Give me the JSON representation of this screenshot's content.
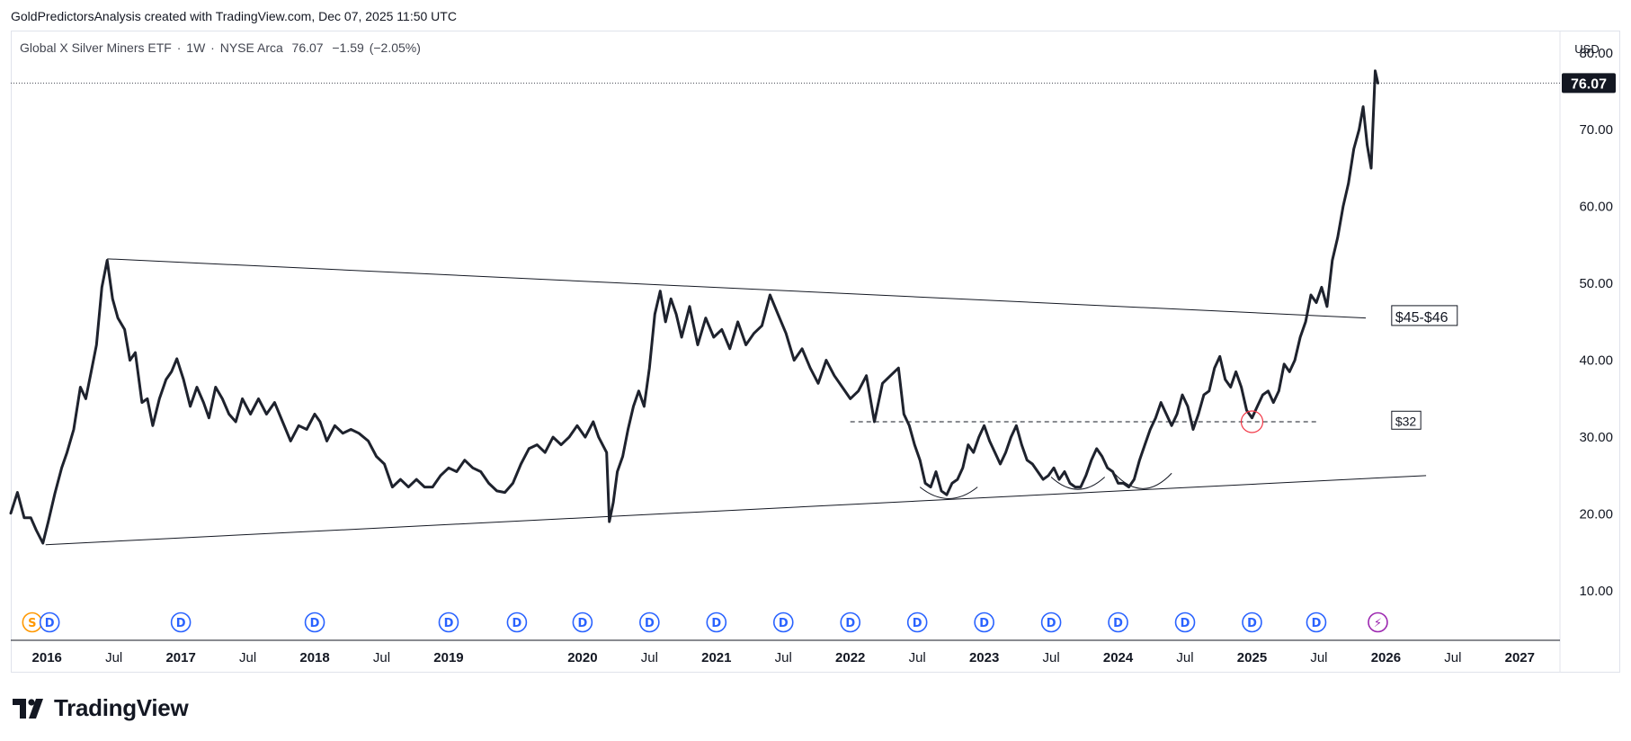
{
  "header": {
    "credit": "GoldPredictorsAnalysis created with TradingView.com, Dec 07, 2025 11:50 UTC"
  },
  "legend": {
    "name": "Global X Silver Miners ETF",
    "interval": "1W",
    "exchange": "NYSE Arca",
    "last": "76.07",
    "change": "−1.59",
    "change_pct": "(−2.05%)",
    "sep": "·"
  },
  "currency": "USD",
  "price_tag": "76.07",
  "footer": {
    "brand": "TradingView"
  },
  "colors": {
    "line": "#1e222d",
    "grid": "#e0e3eb",
    "event_blue": "#2962ff",
    "event_orange": "#ff9800",
    "event_purple": "#9c27b0",
    "marker_red": "#f23645"
  },
  "chart_data": {
    "type": "line",
    "title": "Global X Silver Miners ETF · 1W · NYSE Arca",
    "ylim": [
      3.8,
      82.9
    ],
    "xlim": [
      2015.73,
      2027.3
    ],
    "y_ticks": [
      10,
      20,
      30,
      40,
      50,
      60,
      70,
      80
    ],
    "y_tick_labels": [
      "10.00",
      "20.00",
      "30.00",
      "40.00",
      "50.00",
      "60.00",
      "70.00",
      "80.00"
    ],
    "x_ticks": [
      {
        "x": 2016.0,
        "label": "2016",
        "bold": true
      },
      {
        "x": 2016.5,
        "label": "Jul",
        "bold": false
      },
      {
        "x": 2017.0,
        "label": "2017",
        "bold": true
      },
      {
        "x": 2017.5,
        "label": "Jul",
        "bold": false
      },
      {
        "x": 2018.0,
        "label": "2018",
        "bold": true
      },
      {
        "x": 2018.5,
        "label": "Jul",
        "bold": false
      },
      {
        "x": 2019.0,
        "label": "2019",
        "bold": true
      },
      {
        "x": 2020.0,
        "label": "2020",
        "bold": true
      },
      {
        "x": 2020.5,
        "label": "Jul",
        "bold": false
      },
      {
        "x": 2021.0,
        "label": "2021",
        "bold": true
      },
      {
        "x": 2021.5,
        "label": "Jul",
        "bold": false
      },
      {
        "x": 2022.0,
        "label": "2022",
        "bold": true
      },
      {
        "x": 2022.5,
        "label": "Jul",
        "bold": false
      },
      {
        "x": 2023.0,
        "label": "2023",
        "bold": true
      },
      {
        "x": 2023.5,
        "label": "Jul",
        "bold": false
      },
      {
        "x": 2024.0,
        "label": "2024",
        "bold": true
      },
      {
        "x": 2024.5,
        "label": "Jul",
        "bold": false
      },
      {
        "x": 2025.0,
        "label": "2025",
        "bold": true
      },
      {
        "x": 2025.5,
        "label": "Jul",
        "bold": false
      },
      {
        "x": 2026.0,
        "label": "2026",
        "bold": true
      },
      {
        "x": 2026.5,
        "label": "Jul",
        "bold": false
      },
      {
        "x": 2027.0,
        "label": "2027",
        "bold": true
      }
    ],
    "series": [
      {
        "values": [
          [
            2015.73,
            20.1
          ],
          [
            2015.78,
            22.8
          ],
          [
            2015.83,
            19.5
          ],
          [
            2015.88,
            19.5
          ],
          [
            2015.92,
            17.9
          ],
          [
            2015.97,
            16.2
          ],
          [
            2016.01,
            19.0
          ],
          [
            2016.06,
            22.7
          ],
          [
            2016.11,
            26.0
          ],
          [
            2016.15,
            28.0
          ],
          [
            2016.2,
            31.0
          ],
          [
            2016.25,
            36.5
          ],
          [
            2016.29,
            35.0
          ],
          [
            2016.33,
            38.5
          ],
          [
            2016.37,
            42.0
          ],
          [
            2016.41,
            49.5
          ],
          [
            2016.45,
            53.0
          ],
          [
            2016.49,
            48.0
          ],
          [
            2016.53,
            45.5
          ],
          [
            2016.58,
            44.0
          ],
          [
            2016.62,
            40.0
          ],
          [
            2016.66,
            41.0
          ],
          [
            2016.71,
            34.5
          ],
          [
            2016.75,
            35.0
          ],
          [
            2016.79,
            31.5
          ],
          [
            2016.84,
            35.0
          ],
          [
            2016.89,
            37.5
          ],
          [
            2016.93,
            38.5
          ],
          [
            2016.97,
            40.2
          ],
          [
            2017.02,
            37.5
          ],
          [
            2017.07,
            34.0
          ],
          [
            2017.12,
            36.5
          ],
          [
            2017.17,
            34.5
          ],
          [
            2017.21,
            32.5
          ],
          [
            2017.26,
            36.5
          ],
          [
            2017.31,
            35.0
          ],
          [
            2017.36,
            33.0
          ],
          [
            2017.41,
            32.0
          ],
          [
            2017.46,
            35.0
          ],
          [
            2017.52,
            33.0
          ],
          [
            2017.58,
            35.0
          ],
          [
            2017.64,
            33.0
          ],
          [
            2017.7,
            34.5
          ],
          [
            2017.76,
            32.0
          ],
          [
            2017.82,
            29.5
          ],
          [
            2017.88,
            31.5
          ],
          [
            2017.94,
            31.0
          ],
          [
            2018.0,
            33.0
          ],
          [
            2018.04,
            32.0
          ],
          [
            2018.09,
            29.5
          ],
          [
            2018.15,
            31.5
          ],
          [
            2018.21,
            30.5
          ],
          [
            2018.27,
            31.0
          ],
          [
            2018.33,
            30.5
          ],
          [
            2018.4,
            29.5
          ],
          [
            2018.46,
            27.5
          ],
          [
            2018.52,
            26.5
          ],
          [
            2018.58,
            23.5
          ],
          [
            2018.64,
            24.5
          ],
          [
            2018.7,
            23.5
          ],
          [
            2018.76,
            24.5
          ],
          [
            2018.82,
            23.5
          ],
          [
            2018.88,
            23.5
          ],
          [
            2018.94,
            25.0
          ],
          [
            2019.0,
            26.0
          ],
          [
            2019.06,
            25.5
          ],
          [
            2019.12,
            27.0
          ],
          [
            2019.18,
            26.0
          ],
          [
            2019.24,
            25.5
          ],
          [
            2019.3,
            24.0
          ],
          [
            2019.36,
            23.0
          ],
          [
            2019.42,
            22.8
          ],
          [
            2019.48,
            24.0
          ],
          [
            2019.54,
            26.5
          ],
          [
            2019.6,
            28.5
          ],
          [
            2019.66,
            29.0
          ],
          [
            2019.72,
            28.0
          ],
          [
            2019.78,
            30.0
          ],
          [
            2019.84,
            29.0
          ],
          [
            2019.9,
            30.0
          ],
          [
            2019.96,
            31.5
          ],
          [
            2020.02,
            30.0
          ],
          [
            2020.08,
            32.0
          ],
          [
            2020.12,
            30.0
          ],
          [
            2020.15,
            29.0
          ],
          [
            2020.18,
            28.0
          ],
          [
            2020.2,
            19.0
          ],
          [
            2020.23,
            21.5
          ],
          [
            2020.26,
            25.5
          ],
          [
            2020.3,
            27.5
          ],
          [
            2020.34,
            31.0
          ],
          [
            2020.38,
            34.0
          ],
          [
            2020.42,
            36.0
          ],
          [
            2020.46,
            34.0
          ],
          [
            2020.5,
            39.0
          ],
          [
            2020.54,
            46.0
          ],
          [
            2020.58,
            49.0
          ],
          [
            2020.62,
            45.0
          ],
          [
            2020.66,
            48.0
          ],
          [
            2020.7,
            46.0
          ],
          [
            2020.74,
            43.0
          ],
          [
            2020.8,
            47.0
          ],
          [
            2020.86,
            42.0
          ],
          [
            2020.92,
            45.5
          ],
          [
            2020.98,
            43.0
          ],
          [
            2021.04,
            44.0
          ],
          [
            2021.1,
            41.5
          ],
          [
            2021.16,
            45.0
          ],
          [
            2021.22,
            42.0
          ],
          [
            2021.28,
            43.5
          ],
          [
            2021.34,
            44.5
          ],
          [
            2021.4,
            48.5
          ],
          [
            2021.46,
            46.0
          ],
          [
            2021.52,
            43.5
          ],
          [
            2021.58,
            40.0
          ],
          [
            2021.64,
            41.5
          ],
          [
            2021.7,
            39.0
          ],
          [
            2021.76,
            37.0
          ],
          [
            2021.82,
            40.0
          ],
          [
            2021.88,
            38.0
          ],
          [
            2021.94,
            36.5
          ],
          [
            2022.0,
            35.0
          ],
          [
            2022.06,
            36.0
          ],
          [
            2022.12,
            38.0
          ],
          [
            2022.18,
            32.0
          ],
          [
            2022.24,
            37.0
          ],
          [
            2022.3,
            38.0
          ],
          [
            2022.36,
            39.0
          ],
          [
            2022.4,
            33.0
          ],
          [
            2022.44,
            31.5
          ],
          [
            2022.48,
            29.0
          ],
          [
            2022.52,
            27.0
          ],
          [
            2022.56,
            24.0
          ],
          [
            2022.6,
            23.5
          ],
          [
            2022.64,
            25.5
          ],
          [
            2022.68,
            23.0
          ],
          [
            2022.72,
            22.5
          ],
          [
            2022.76,
            24.0
          ],
          [
            2022.8,
            24.5
          ],
          [
            2022.84,
            26.0
          ],
          [
            2022.88,
            29.0
          ],
          [
            2022.92,
            28.0
          ],
          [
            2022.96,
            30.0
          ],
          [
            2023.0,
            31.5
          ],
          [
            2023.04,
            29.5
          ],
          [
            2023.08,
            28.0
          ],
          [
            2023.12,
            26.5
          ],
          [
            2023.16,
            28.0
          ],
          [
            2023.2,
            30.0
          ],
          [
            2023.24,
            31.5
          ],
          [
            2023.28,
            29.0
          ],
          [
            2023.32,
            27.0
          ],
          [
            2023.36,
            26.5
          ],
          [
            2023.4,
            25.5
          ],
          [
            2023.44,
            24.5
          ],
          [
            2023.48,
            25.0
          ],
          [
            2023.52,
            26.0
          ],
          [
            2023.56,
            24.5
          ],
          [
            2023.6,
            25.5
          ],
          [
            2023.64,
            24.0
          ],
          [
            2023.68,
            23.5
          ],
          [
            2023.72,
            23.5
          ],
          [
            2023.76,
            25.0
          ],
          [
            2023.8,
            27.0
          ],
          [
            2023.84,
            28.5
          ],
          [
            2023.88,
            27.5
          ],
          [
            2023.92,
            26.0
          ],
          [
            2023.96,
            25.5
          ],
          [
            2024.0,
            24.0
          ],
          [
            2024.04,
            24.0
          ],
          [
            2024.08,
            23.5
          ],
          [
            2024.12,
            24.5
          ],
          [
            2024.16,
            27.0
          ],
          [
            2024.2,
            29.0
          ],
          [
            2024.24,
            31.0
          ],
          [
            2024.28,
            32.5
          ],
          [
            2024.32,
            34.5
          ],
          [
            2024.36,
            33.0
          ],
          [
            2024.4,
            31.5
          ],
          [
            2024.44,
            33.0
          ],
          [
            2024.48,
            35.5
          ],
          [
            2024.52,
            34.0
          ],
          [
            2024.56,
            31.0
          ],
          [
            2024.6,
            33.0
          ],
          [
            2024.64,
            35.5
          ],
          [
            2024.68,
            36.0
          ],
          [
            2024.72,
            39.0
          ],
          [
            2024.76,
            40.5
          ],
          [
            2024.8,
            37.5
          ],
          [
            2024.84,
            36.5
          ],
          [
            2024.88,
            38.5
          ],
          [
            2024.92,
            36.5
          ],
          [
            2024.96,
            33.5
          ],
          [
            2025.0,
            32.5
          ],
          [
            2025.04,
            34.0
          ],
          [
            2025.08,
            35.5
          ],
          [
            2025.12,
            36.0
          ],
          [
            2025.16,
            34.5
          ],
          [
            2025.2,
            36.0
          ],
          [
            2025.24,
            39.5
          ],
          [
            2025.28,
            38.5
          ],
          [
            2025.32,
            40.0
          ],
          [
            2025.36,
            43.0
          ],
          [
            2025.4,
            45.0
          ],
          [
            2025.44,
            48.5
          ],
          [
            2025.48,
            47.5
          ],
          [
            2025.52,
            49.5
          ],
          [
            2025.56,
            47.0
          ],
          [
            2025.6,
            53.0
          ],
          [
            2025.64,
            56.0
          ],
          [
            2025.68,
            60.0
          ],
          [
            2025.72,
            63.0
          ],
          [
            2025.76,
            67.5
          ],
          [
            2025.8,
            70.0
          ],
          [
            2025.83,
            73.0
          ],
          [
            2025.86,
            68.0
          ],
          [
            2025.89,
            65.0
          ],
          [
            2025.92,
            77.66
          ],
          [
            2025.94,
            76.07
          ]
        ]
      }
    ],
    "trendlines": [
      {
        "kind": "solid",
        "from": [
          2016.45,
          53.2
        ],
        "to": [
          2025.85,
          45.5
        ]
      },
      {
        "kind": "solid",
        "from": [
          2015.99,
          16.0
        ],
        "to": [
          2026.3,
          25.0
        ]
      },
      {
        "kind": "dashed",
        "from": [
          2022.0,
          32.0
        ],
        "to": [
          2025.5,
          32.0
        ]
      },
      {
        "kind": "dotted",
        "from": [
          2015.73,
          76.07
        ],
        "to": [
          2027.3,
          76.07
        ]
      }
    ],
    "arcs": [
      {
        "from": [
          2022.52,
          23.5
        ],
        "to": [
          2022.95,
          23.5
        ],
        "bottom": 22.0
      },
      {
        "from": [
          2023.5,
          24.8
        ],
        "to": [
          2023.9,
          24.8
        ],
        "bottom": 23.2
      },
      {
        "from": [
          2023.97,
          25.3
        ],
        "to": [
          2024.4,
          25.3
        ],
        "bottom": 23.3
      }
    ],
    "highlight_circle": {
      "x": 2025.0,
      "y": 32.0
    },
    "annotations": [
      {
        "text": "$45-$46",
        "x": 2026.07,
        "y": 45.0,
        "size": 16
      },
      {
        "text": "$32",
        "x": 2026.07,
        "y": 31.5,
        "size": 14
      }
    ],
    "events": [
      {
        "x": 2015.89,
        "label": "S",
        "kind": "split"
      },
      {
        "x": 2016.02,
        "label": "D",
        "kind": "dividend"
      },
      {
        "x": 2017.0,
        "label": "D",
        "kind": "dividend"
      },
      {
        "x": 2018.0,
        "label": "D",
        "kind": "dividend"
      },
      {
        "x": 2019.0,
        "label": "D",
        "kind": "dividend"
      },
      {
        "x": 2019.51,
        "label": "D",
        "kind": "dividend"
      },
      {
        "x": 2020.0,
        "label": "D",
        "kind": "dividend"
      },
      {
        "x": 2020.5,
        "label": "D",
        "kind": "dividend"
      },
      {
        "x": 2021.0,
        "label": "D",
        "kind": "dividend"
      },
      {
        "x": 2021.5,
        "label": "D",
        "kind": "dividend"
      },
      {
        "x": 2022.0,
        "label": "D",
        "kind": "dividend"
      },
      {
        "x": 2022.5,
        "label": "D",
        "kind": "dividend"
      },
      {
        "x": 2023.0,
        "label": "D",
        "kind": "dividend"
      },
      {
        "x": 2023.5,
        "label": "D",
        "kind": "dividend"
      },
      {
        "x": 2024.0,
        "label": "D",
        "kind": "dividend"
      },
      {
        "x": 2024.5,
        "label": "D",
        "kind": "dividend"
      },
      {
        "x": 2025.0,
        "label": "D",
        "kind": "dividend"
      },
      {
        "x": 2025.48,
        "label": "D",
        "kind": "dividend"
      },
      {
        "x": 2025.94,
        "label": "⚡",
        "kind": "earnings"
      }
    ]
  }
}
